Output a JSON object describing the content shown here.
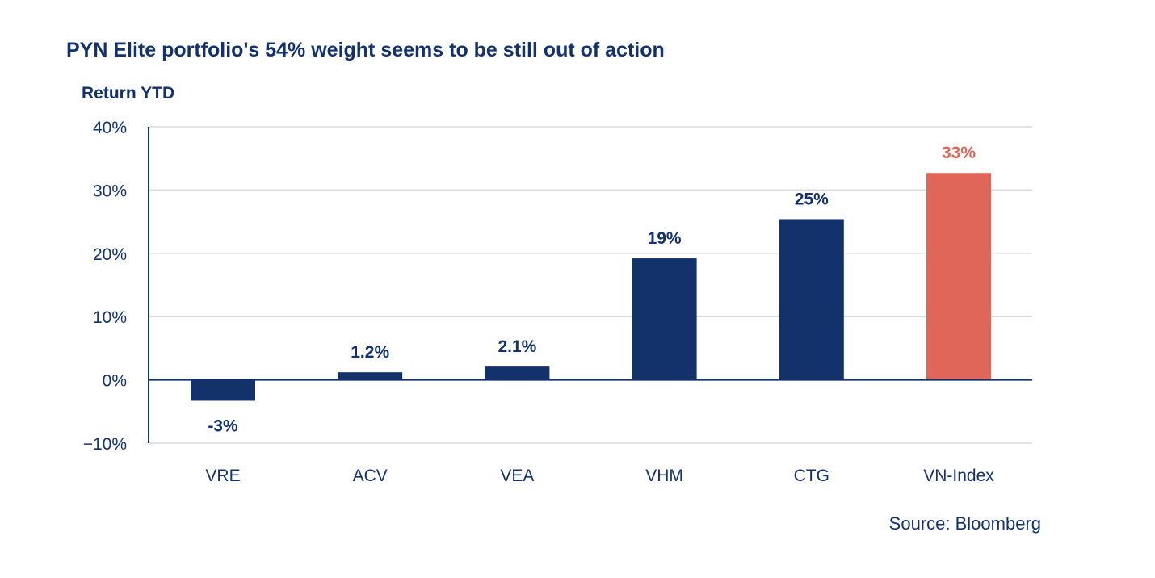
{
  "chart_data": {
    "type": "bar",
    "title": "PYN Elite portfolio's 54% weight seems to be still out of action",
    "ylabel": "Return YTD",
    "xlabel": "",
    "source": "Source: Bloomberg",
    "ylim": [
      -10,
      40
    ],
    "yticks": [
      40,
      30,
      20,
      10,
      0,
      -10
    ],
    "ytick_labels": [
      "40%",
      "30%",
      "20%",
      "10%",
      "0%",
      "−10%"
    ],
    "grid": true,
    "categories": [
      "VRE",
      "ACV",
      "VEA",
      "VHM",
      "CTG",
      "VN-Index"
    ],
    "values": [
      -3.3,
      1.2,
      2.1,
      19.2,
      25.4,
      32.7
    ],
    "data_labels": [
      "-3%",
      "1.2%",
      "2.1%",
      "19%",
      "25%",
      "33%"
    ],
    "bar_colors": [
      "#13316b",
      "#13316b",
      "#13316b",
      "#13316b",
      "#13316b",
      "#e0665a"
    ],
    "label_colors": [
      "#13316b",
      "#13316b",
      "#13316b",
      "#13316b",
      "#13316b",
      "#e0665a"
    ]
  }
}
